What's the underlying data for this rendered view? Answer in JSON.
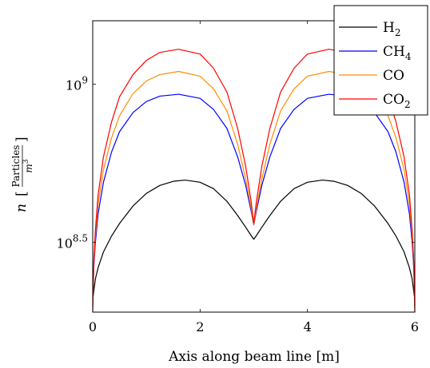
{
  "chart_data": {
    "type": "line",
    "xlabel": "Axis along beam line [m]",
    "ylabel": "n [Particles/m³]",
    "xlim": [
      0,
      6
    ],
    "ylim": [
      8.28,
      9.2
    ],
    "y_scale": "log10 (values are exponents)",
    "x_ticks": [
      0,
      2,
      4,
      6
    ],
    "x_tick_labels": [
      "0",
      "2",
      "4",
      "6"
    ],
    "y_ticks": [
      8.5,
      9
    ],
    "y_tick_labels": [
      {
        "base": "10",
        "exp": "8.5"
      },
      {
        "base": "10",
        "exp": "9"
      }
    ],
    "grid": false,
    "legend_position": "top-right",
    "series": [
      {
        "name": "H2",
        "label_main": "H",
        "label_sub": "2",
        "color": "#000000",
        "x": [
          0,
          0.05,
          0.1,
          0.2,
          0.35,
          0.5,
          0.75,
          1.0,
          1.25,
          1.5,
          1.72,
          2.0,
          2.25,
          2.5,
          2.7,
          2.85,
          2.95,
          3.0,
          3.05,
          3.15,
          3.3,
          3.5,
          3.75,
          4.0,
          4.28,
          4.5,
          4.75,
          5.0,
          5.25,
          5.5,
          5.65,
          5.8,
          5.9,
          5.95,
          6.0
        ],
        "y": [
          8.32,
          8.385,
          8.42,
          8.47,
          8.52,
          8.56,
          8.615,
          8.655,
          8.68,
          8.693,
          8.697,
          8.69,
          8.67,
          8.63,
          8.585,
          8.548,
          8.522,
          8.51,
          8.522,
          8.548,
          8.585,
          8.63,
          8.67,
          8.69,
          8.697,
          8.693,
          8.68,
          8.655,
          8.615,
          8.56,
          8.52,
          8.47,
          8.42,
          8.385,
          8.32
        ]
      },
      {
        "name": "CH4",
        "label_main": "CH",
        "label_sub": "4",
        "color": "#0000ff",
        "x": [
          0,
          0.02,
          0.05,
          0.1,
          0.2,
          0.35,
          0.5,
          0.75,
          1.0,
          1.25,
          1.6,
          2.0,
          2.25,
          2.5,
          2.7,
          2.85,
          2.95,
          3.0,
          3.05,
          3.15,
          3.3,
          3.5,
          3.75,
          4.0,
          4.4,
          4.75,
          5.0,
          5.25,
          5.5,
          5.65,
          5.8,
          5.9,
          5.95,
          5.98,
          6.0
        ],
        "y": [
          8.3,
          8.42,
          8.5,
          8.59,
          8.69,
          8.785,
          8.85,
          8.91,
          8.945,
          8.962,
          8.968,
          8.955,
          8.92,
          8.86,
          8.77,
          8.68,
          8.6,
          8.555,
          8.6,
          8.68,
          8.77,
          8.86,
          8.92,
          8.955,
          8.968,
          8.962,
          8.945,
          8.91,
          8.85,
          8.785,
          8.69,
          8.59,
          8.5,
          8.42,
          8.3
        ]
      },
      {
        "name": "CO",
        "label_main": "CO",
        "label_sub": "",
        "color": "#ff8c00",
        "x": [
          0,
          0.02,
          0.05,
          0.1,
          0.2,
          0.35,
          0.5,
          0.75,
          1.0,
          1.25,
          1.6,
          2.0,
          2.25,
          2.5,
          2.7,
          2.85,
          2.95,
          3.0,
          3.05,
          3.15,
          3.3,
          3.5,
          3.75,
          4.0,
          4.4,
          4.75,
          5.0,
          5.25,
          5.5,
          5.65,
          5.8,
          5.9,
          5.95,
          5.98,
          6.0
        ],
        "y": [
          8.29,
          8.43,
          8.52,
          8.62,
          8.73,
          8.83,
          8.9,
          8.97,
          9.01,
          9.03,
          9.04,
          9.025,
          8.985,
          8.915,
          8.81,
          8.7,
          8.61,
          8.555,
          8.61,
          8.7,
          8.81,
          8.915,
          8.985,
          9.025,
          9.04,
          9.03,
          9.01,
          8.97,
          8.9,
          8.83,
          8.73,
          8.62,
          8.52,
          8.43,
          8.29
        ]
      },
      {
        "name": "CO2",
        "label_main": "CO",
        "label_sub": "2",
        "color": "#ff0000",
        "x": [
          0,
          0.02,
          0.05,
          0.1,
          0.2,
          0.35,
          0.5,
          0.75,
          1.0,
          1.25,
          1.6,
          2.0,
          2.25,
          2.5,
          2.7,
          2.85,
          2.95,
          3.0,
          3.05,
          3.15,
          3.3,
          3.5,
          3.75,
          4.0,
          4.4,
          4.75,
          5.0,
          5.25,
          5.5,
          5.65,
          5.8,
          5.9,
          5.95,
          5.98,
          6.0
        ],
        "y": [
          8.28,
          8.44,
          8.54,
          8.65,
          8.77,
          8.88,
          8.96,
          9.03,
          9.075,
          9.1,
          9.11,
          9.095,
          9.05,
          8.975,
          8.86,
          8.74,
          8.63,
          8.56,
          8.63,
          8.74,
          8.86,
          8.975,
          9.05,
          9.095,
          9.11,
          9.1,
          9.075,
          9.03,
          8.96,
          8.88,
          8.77,
          8.65,
          8.54,
          8.44,
          8.28
        ]
      }
    ]
  }
}
